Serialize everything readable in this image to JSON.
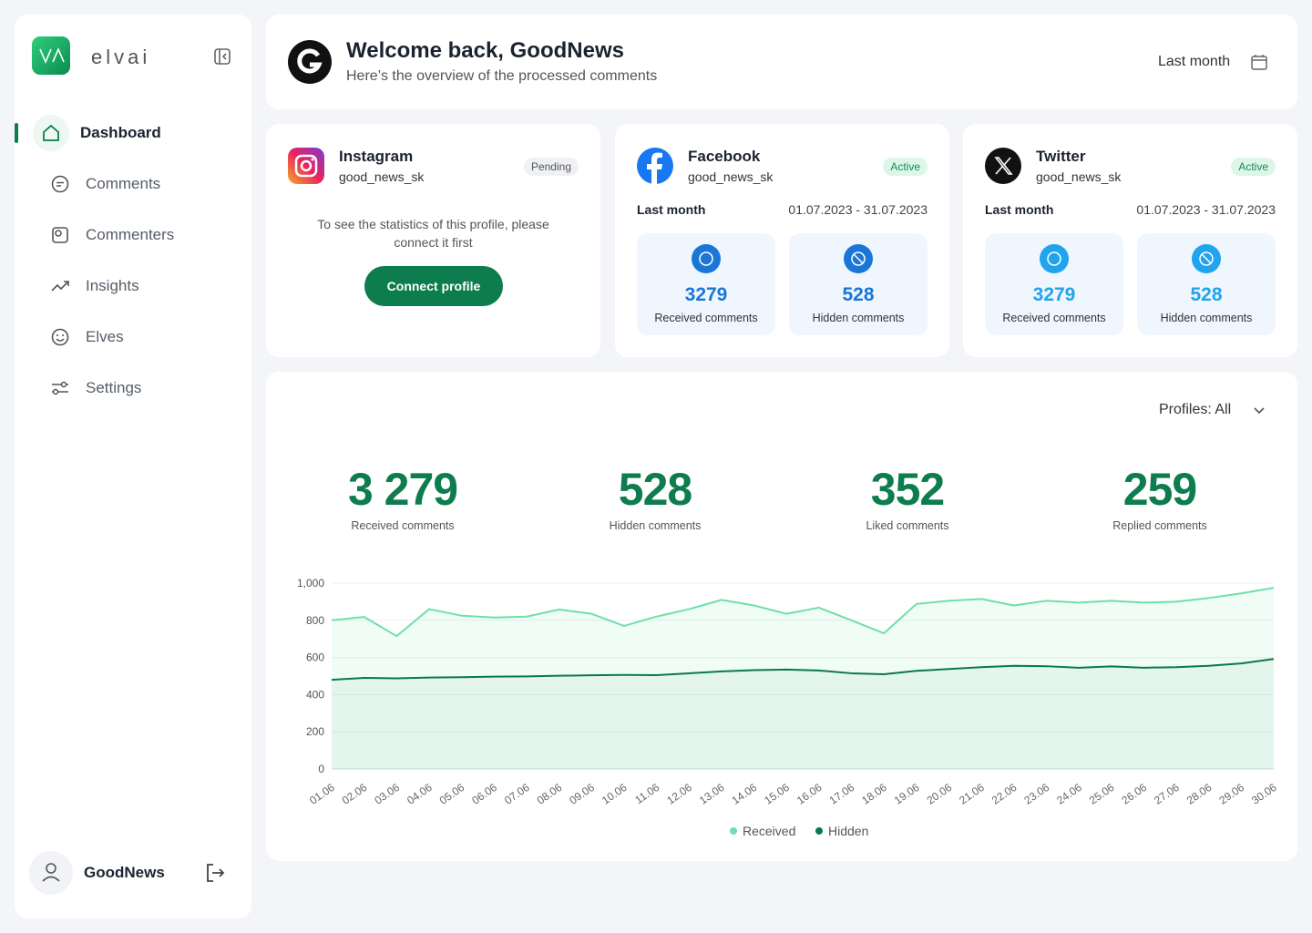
{
  "sidebar": {
    "brand": "elvai",
    "nav": [
      "Dashboard",
      "Comments",
      "Commenters",
      "Insights",
      "Elves",
      "Settings"
    ],
    "user": "GoodNews"
  },
  "header": {
    "title": "Welcome back, GoodNews",
    "subtitle": "Here’s the overview of the processed comments",
    "period": "Last month"
  },
  "profiles": [
    {
      "network": "Instagram",
      "handle": "good_news_sk",
      "status": "Pending",
      "message": "To see the statistics of this profile, please connect it first",
      "button": "Connect profile"
    },
    {
      "network": "Facebook",
      "handle": "good_news_sk",
      "status": "Active",
      "period": "Last month",
      "range": "01.07.2023 - 31.07.2023",
      "stats": [
        {
          "value": "3279",
          "label": "Received comments"
        },
        {
          "value": "528",
          "label": "Hidden comments"
        }
      ]
    },
    {
      "network": "Twitter",
      "handle": "good_news_sk",
      "status": "Active",
      "period": "Last month",
      "range": "01.07.2023 - 31.07.2023",
      "stats": [
        {
          "value": "3279",
          "label": "Received comments"
        },
        {
          "value": "528",
          "label": "Hidden comments"
        }
      ]
    }
  ],
  "summary": {
    "filter": "Profiles: All",
    "stats": [
      {
        "value": "3 279",
        "label": "Received comments"
      },
      {
        "value": "528",
        "label": "Hidden comments"
      },
      {
        "value": "352",
        "label": "Liked comments"
      },
      {
        "value": "259",
        "label": "Replied comments"
      }
    ]
  },
  "chart_data": {
    "type": "line",
    "categories": [
      "01.06",
      "02.06",
      "03.06",
      "04.06",
      "05.06",
      "06.06",
      "07.06",
      "08.06",
      "09.06",
      "10.06",
      "11.06",
      "12.06",
      "13.06",
      "14.06",
      "15.06",
      "16.06",
      "17.06",
      "18.06",
      "19.06",
      "20.06",
      "21.06",
      "22.06",
      "23.06",
      "24.06",
      "25.06",
      "26.06",
      "27.06",
      "28.06",
      "29.06",
      "30.06"
    ],
    "series": [
      {
        "name": "Received",
        "color": "#6ee0a8",
        "values": [
          800,
          818,
          715,
          860,
          825,
          815,
          820,
          858,
          835,
          770,
          820,
          860,
          910,
          880,
          835,
          868,
          800,
          730,
          888,
          905,
          915,
          880,
          905,
          895,
          905,
          895,
          900,
          920,
          945,
          975
        ]
      },
      {
        "name": "Hidden",
        "color": "#0a7a4a",
        "values": [
          480,
          490,
          488,
          492,
          494,
          497,
          498,
          502,
          504,
          506,
          505,
          515,
          525,
          532,
          535,
          530,
          515,
          510,
          528,
          538,
          548,
          555,
          553,
          545,
          552,
          545,
          548,
          555,
          568,
          592
        ]
      }
    ],
    "ylim": [
      0,
      1000
    ],
    "yticks": [
      0,
      200,
      400,
      600,
      800,
      {
        "value": 1000,
        "label": "1,000"
      }
    ],
    "grid": true,
    "legend": "bottom"
  }
}
